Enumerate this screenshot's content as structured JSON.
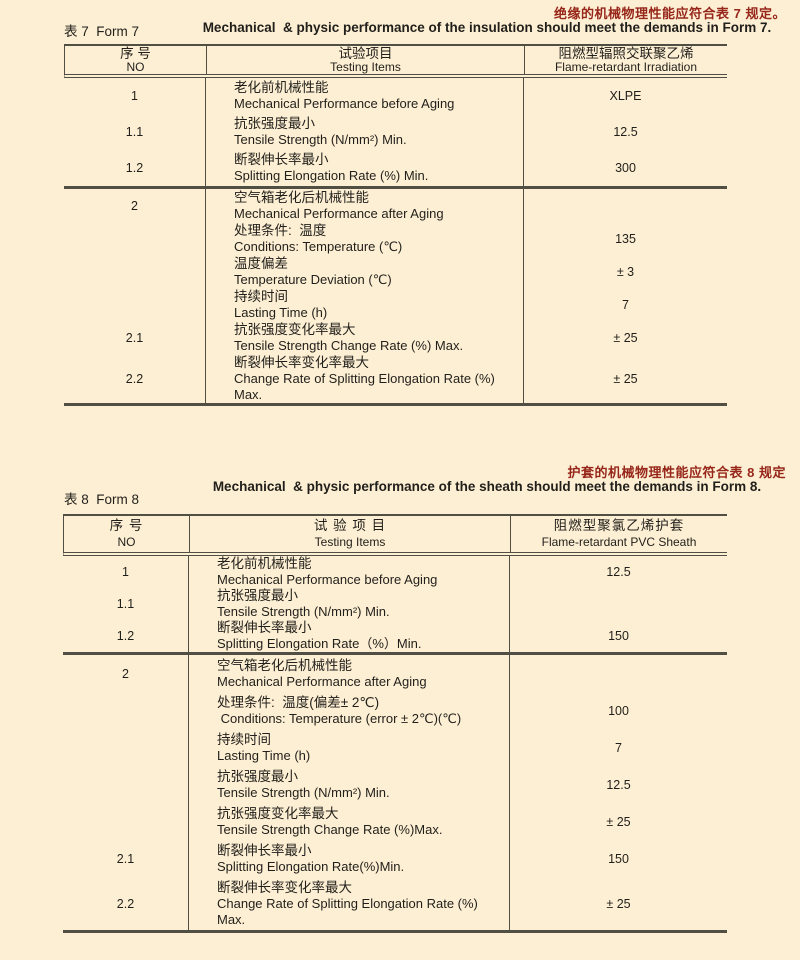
{
  "page": {
    "bg_color": "#fdefd3",
    "line_color": "#514e44",
    "text_color": "#211f1b",
    "accent_red": "#97261a"
  },
  "form7": {
    "notice_cn": "绝缘的机械物理性能应符合表 7 规定。",
    "label": "表 7  Form 7",
    "title_en": "Mechanical  & physic performance of the insulation should meet the demands in Form 7.",
    "header": {
      "no_cn": "序 号",
      "no_en": "NO",
      "item_cn": "试验项目",
      "item_en": "Testing Items",
      "val_cn": "阻燃型辐照交联聚乙烯",
      "val_en": "Flame-retardant Irradiation"
    },
    "sections": [
      {
        "rows": [
          {
            "no": "1",
            "cn": "老化前机械性能",
            "en": "Mechanical Performance before Aging",
            "value": "XLPE"
          },
          {
            "no": "1.1",
            "cn": "抗张强度最小",
            "en": "Tensile Strength (N/mm²) Min.",
            "value": "12.5"
          },
          {
            "no": "1.2",
            "cn": "断裂伸长率最小",
            "en": "Splitting Elongation Rate (%) Min.",
            "value": "300"
          }
        ]
      },
      {
        "rows": [
          {
            "no": "2",
            "cn": "空气箱老化后机械性能",
            "en": "Mechanical Performance after Aging",
            "value": ""
          },
          {
            "no": "",
            "cn": "处理条件:  温度",
            "en": "Conditions: Temperature (℃)",
            "value": "135"
          },
          {
            "no": "",
            "cn": "温度偏差",
            "en": "Temperature Deviation (℃)",
            "value": "± 3"
          },
          {
            "no": "",
            "cn": "持续时间",
            "en": "Lasting Time (h)",
            "value": "7"
          },
          {
            "no": "2.1",
            "cn": "抗张强度变化率最大",
            "en": "Tensile Strength Change Rate (%) Max.",
            "value": "± 25"
          },
          {
            "no": "2.2",
            "cn": "断裂伸长率变化率最大",
            "en": "Change Rate of Splitting Elongation Rate (%) Max.",
            "value": "± 25"
          }
        ]
      }
    ]
  },
  "form8": {
    "notice_cn": "护套的机械物理性能应符合表 8 规定",
    "label": "表 8  Form 8",
    "title_en": "Mechanical  & physic performance of the sheath should meet the demands in Form 8.",
    "header": {
      "no_cn": "序 号",
      "no_en": "NO",
      "item_cn": "试 验 项 目",
      "item_en": "Testing Items",
      "val_cn": "阻燃型聚氯乙烯护套",
      "val_en": "Flame-retardant PVC Sheath"
    },
    "sections": [
      {
        "rows": [
          {
            "no": "1",
            "cn": "老化前机械性能",
            "en": "Mechanical Performance before Aging",
            "value": "12.5"
          },
          {
            "no": "1.1",
            "cn": "抗张强度最小",
            "en": "Tensile Strength (N/mm²) Min.",
            "value": ""
          },
          {
            "no": "1.2",
            "cn": "断裂伸长率最小",
            "en": "Splitting Elongation Rate（%）Min.",
            "value": "150"
          }
        ]
      },
      {
        "rows": [
          {
            "no": "2",
            "cn": "空气箱老化后机械性能",
            "en": "Mechanical Performance after Aging",
            "value": ""
          },
          {
            "no": "",
            "cn": "处理条件:  温度(偏差± 2℃)",
            "en": " Conditions: Temperature (error ± 2℃)(℃)",
            "value": "100"
          },
          {
            "no": "",
            "cn": "持续时间",
            "en": "Lasting Time (h)",
            "value": "7"
          },
          {
            "no": "",
            "cn": "抗张强度最小",
            "en": "Tensile Strength (N/mm²) Min.",
            "value": "12.5"
          },
          {
            "no": "",
            "cn": "抗张强度变化率最大",
            "en": "Tensile Strength Change Rate (%)Max.",
            "value": "± 25"
          },
          {
            "no": "2.1",
            "cn": "断裂伸长率最小",
            "en": "Splitting Elongation Rate(%)Min.",
            "value": "150"
          },
          {
            "no": "2.2",
            "cn": "断裂伸长率变化率最大",
            "en": "Change Rate of Splitting Elongation Rate (%) Max.",
            "value": "± 25"
          }
        ]
      }
    ]
  }
}
